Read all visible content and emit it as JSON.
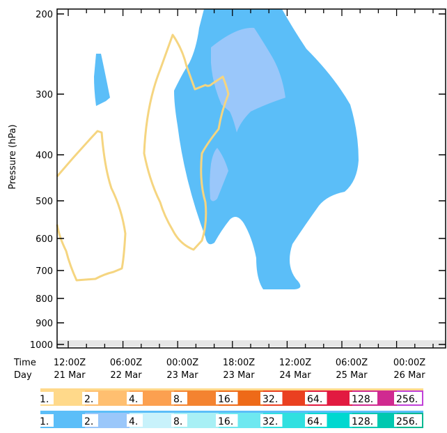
{
  "chart_data": {
    "type": "contour",
    "ylabel": "Pressure (hPa)",
    "y_scale": "log",
    "ylim": [
      1000,
      200
    ],
    "yticks": [
      "200",
      "300",
      "400",
      "500",
      "600",
      "700",
      "800",
      "900",
      "1000"
    ],
    "x_row_labels": [
      "Time",
      "Day"
    ],
    "x_times": [
      "12:00Z",
      "06:00Z",
      "00:00Z",
      "18:00Z",
      "12:00Z",
      "06:00Z",
      "00:00Z"
    ],
    "x_days": [
      "21 Mar",
      "22 Mar",
      "23 Mar",
      "23 Mar",
      "24 Mar",
      "25 Mar",
      "26 Mar"
    ],
    "colorbars": [
      {
        "levels": [
          "1.",
          "2.",
          "4.",
          "8.",
          "16.",
          "32.",
          "64.",
          "128.",
          "256."
        ],
        "colors": [
          "#ffd98a",
          "#ffbf70",
          "#fca050",
          "#f48330",
          "#ee6a18",
          "#ea4020",
          "#e21a40",
          "#d02a90",
          "#c040d8"
        ]
      },
      {
        "levels": [
          "1.",
          "2.",
          "4.",
          "8.",
          "16.",
          "32.",
          "64.",
          "128.",
          "256."
        ],
        "colors": [
          "#5bbef8",
          "#9ac7fa",
          "#c8f2fb",
          "#a8f0f5",
          "#6ee8f0",
          "#30e0e0",
          "#00d8d0",
          "#00c8b0",
          "#00b890"
        ]
      }
    ],
    "fields": {
      "filled_blue_levels": [
        "1.",
        "2."
      ],
      "contour_orange_levels": [
        "1."
      ]
    }
  }
}
